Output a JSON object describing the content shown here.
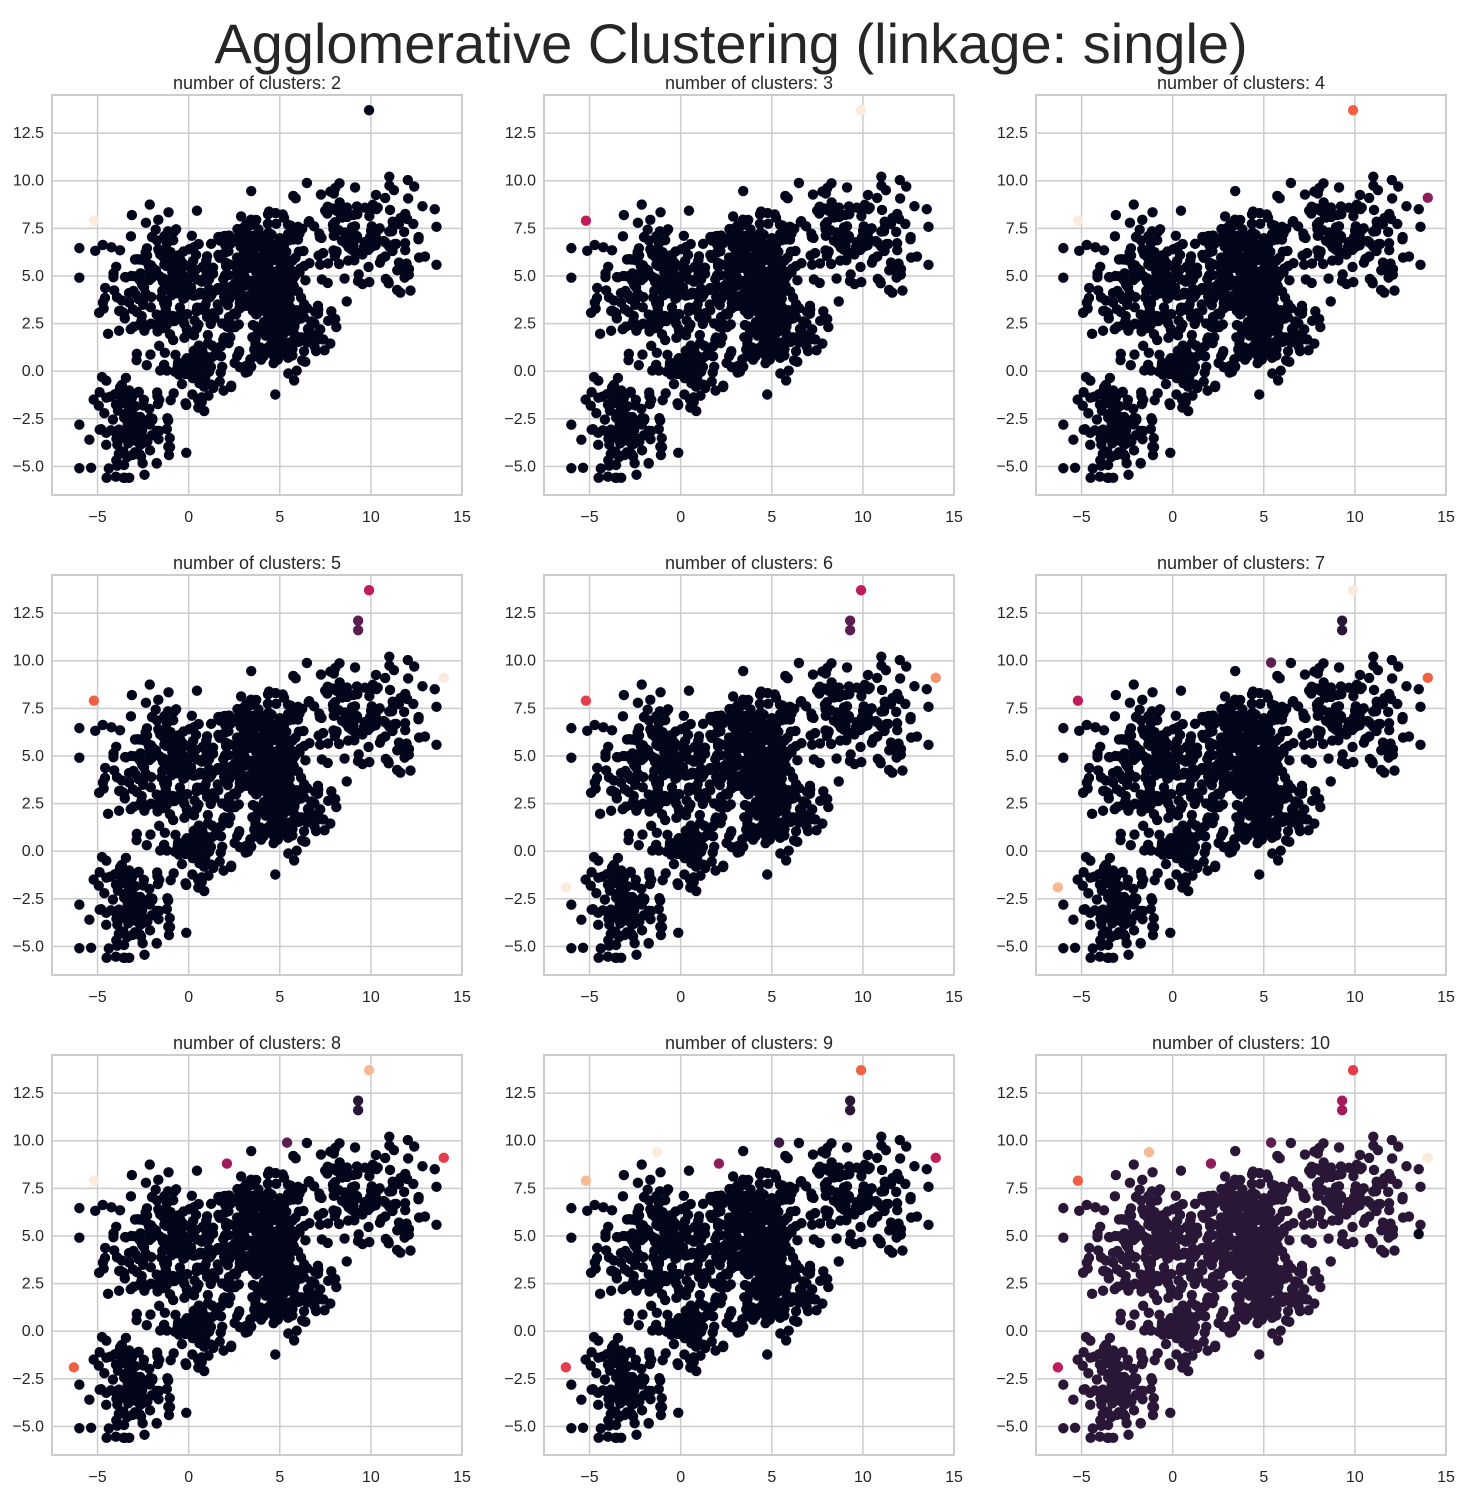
{
  "figure_title": "Agglomerative Clustering (linkage: single)",
  "colors": {
    "grid": "#cccccc",
    "spine": "#cccccc",
    "background": "#ffffff",
    "palette": [
      "#03051a",
      "#2a1636",
      "#5b1e51",
      "#8e1d5b",
      "#c01b5a",
      "#e43d4b",
      "#f06043",
      "#f5936b",
      "#f7b994",
      "#faebdd"
    ]
  },
  "chart_data": [
    {
      "type": "scatter",
      "title": "number of clusters: 2",
      "xlim": [
        -7.5,
        15
      ],
      "ylim": [
        -6.5,
        14.5
      ],
      "xticks": [
        "−5",
        "0",
        "5",
        "10",
        "15"
      ],
      "yticks": [
        "−5.0",
        "−2.5",
        "0.0",
        "2.5",
        "5.0",
        "7.5",
        "10.0",
        "12.5"
      ],
      "main_cluster_color": "#03051a",
      "outliers": [
        {
          "x": -5.2,
          "y": 7.9,
          "color": "#faebdd"
        },
        {
          "x": 9.9,
          "y": 13.7,
          "color": "#03051a"
        }
      ]
    },
    {
      "type": "scatter",
      "title": "number of clusters: 3",
      "xlim": [
        -7.5,
        15
      ],
      "ylim": [
        -6.5,
        14.5
      ],
      "xticks": [
        "−5",
        "0",
        "5",
        "10",
        "15"
      ],
      "yticks": [
        "−5.0",
        "−2.5",
        "0.0",
        "2.5",
        "5.0",
        "7.5",
        "10.0",
        "12.5"
      ],
      "main_cluster_color": "#03051a",
      "outliers": [
        {
          "x": -5.2,
          "y": 7.9,
          "color": "#c01b5a"
        },
        {
          "x": 9.9,
          "y": 13.7,
          "color": "#faebdd"
        }
      ]
    },
    {
      "type": "scatter",
      "title": "number of clusters: 4",
      "xlim": [
        -7.5,
        15
      ],
      "ylim": [
        -6.5,
        14.5
      ],
      "xticks": [
        "−5",
        "0",
        "5",
        "10",
        "15"
      ],
      "yticks": [
        "−5.0",
        "−2.5",
        "0.0",
        "2.5",
        "5.0",
        "7.5",
        "10.0",
        "12.5"
      ],
      "main_cluster_color": "#03051a",
      "outliers": [
        {
          "x": -5.2,
          "y": 7.9,
          "color": "#faebdd"
        },
        {
          "x": 9.9,
          "y": 13.7,
          "color": "#f06043"
        },
        {
          "x": 14.0,
          "y": 9.1,
          "color": "#8e1d5b"
        }
      ]
    },
    {
      "type": "scatter",
      "title": "number of clusters: 5",
      "xlim": [
        -7.5,
        15
      ],
      "ylim": [
        -6.5,
        14.5
      ],
      "xticks": [
        "−5",
        "0",
        "5",
        "10",
        "15"
      ],
      "yticks": [
        "−5.0",
        "−2.5",
        "0.0",
        "2.5",
        "5.0",
        "7.5",
        "10.0",
        "12.5"
      ],
      "main_cluster_color": "#03051a",
      "outliers": [
        {
          "x": -5.2,
          "y": 7.9,
          "color": "#f06043"
        },
        {
          "x": 9.9,
          "y": 13.7,
          "color": "#c01b5a"
        },
        {
          "x": 9.3,
          "y": 12.1,
          "color": "#5b1e51"
        },
        {
          "x": 9.3,
          "y": 11.6,
          "color": "#5b1e51"
        },
        {
          "x": 14.0,
          "y": 9.1,
          "color": "#faebdd"
        }
      ]
    },
    {
      "type": "scatter",
      "title": "number of clusters: 6",
      "xlim": [
        -7.5,
        15
      ],
      "ylim": [
        -6.5,
        14.5
      ],
      "xticks": [
        "−5",
        "0",
        "5",
        "10",
        "15"
      ],
      "yticks": [
        "−5.0",
        "−2.5",
        "0.0",
        "2.5",
        "5.0",
        "7.5",
        "10.0",
        "12.5"
      ],
      "main_cluster_color": "#03051a",
      "outliers": [
        {
          "x": -5.2,
          "y": 7.9,
          "color": "#e43d4b"
        },
        {
          "x": -6.3,
          "y": -1.9,
          "color": "#faebdd"
        },
        {
          "x": 9.9,
          "y": 13.7,
          "color": "#c01b5a"
        },
        {
          "x": 9.3,
          "y": 12.1,
          "color": "#5b1e51"
        },
        {
          "x": 9.3,
          "y": 11.6,
          "color": "#5b1e51"
        },
        {
          "x": 14.0,
          "y": 9.1,
          "color": "#f5936b"
        }
      ]
    },
    {
      "type": "scatter",
      "title": "number of clusters: 7",
      "xlim": [
        -7.5,
        15
      ],
      "ylim": [
        -6.5,
        14.5
      ],
      "xticks": [
        "−5",
        "0",
        "5",
        "10",
        "15"
      ],
      "yticks": [
        "−5.0",
        "−2.5",
        "0.0",
        "2.5",
        "5.0",
        "7.5",
        "10.0",
        "12.5"
      ],
      "main_cluster_color": "#03051a",
      "outliers": [
        {
          "x": -5.2,
          "y": 7.9,
          "color": "#c01b5a"
        },
        {
          "x": -6.3,
          "y": -1.9,
          "color": "#f7b994"
        },
        {
          "x": 9.9,
          "y": 13.7,
          "color": "#faebdd"
        },
        {
          "x": 9.3,
          "y": 12.1,
          "color": "#2a1636"
        },
        {
          "x": 9.3,
          "y": 11.6,
          "color": "#2a1636"
        },
        {
          "x": 5.4,
          "y": 9.9,
          "color": "#5b1e51"
        },
        {
          "x": 14.0,
          "y": 9.1,
          "color": "#f06043"
        }
      ]
    },
    {
      "type": "scatter",
      "title": "number of clusters: 8",
      "xlim": [
        -7.5,
        15
      ],
      "ylim": [
        -6.5,
        14.5
      ],
      "xticks": [
        "−5",
        "0",
        "5",
        "10",
        "15"
      ],
      "yticks": [
        "−5.0",
        "−2.5",
        "0.0",
        "2.5",
        "5.0",
        "7.5",
        "10.0",
        "12.5"
      ],
      "main_cluster_color": "#03051a",
      "outliers": [
        {
          "x": -5.2,
          "y": 7.9,
          "color": "#faebdd"
        },
        {
          "x": -6.3,
          "y": -1.9,
          "color": "#f06043"
        },
        {
          "x": 9.9,
          "y": 13.7,
          "color": "#f7b994"
        },
        {
          "x": 9.3,
          "y": 12.1,
          "color": "#2a1636"
        },
        {
          "x": 9.3,
          "y": 11.6,
          "color": "#2a1636"
        },
        {
          "x": 5.4,
          "y": 9.9,
          "color": "#5b1e51"
        },
        {
          "x": 2.1,
          "y": 8.8,
          "color": "#a41b5b"
        },
        {
          "x": 14.0,
          "y": 9.1,
          "color": "#e43d4b"
        }
      ]
    },
    {
      "type": "scatter",
      "title": "number of clusters: 9",
      "xlim": [
        -7.5,
        15
      ],
      "ylim": [
        -6.5,
        14.5
      ],
      "xticks": [
        "−5",
        "0",
        "5",
        "10",
        "15"
      ],
      "yticks": [
        "−5.0",
        "−2.5",
        "0.0",
        "2.5",
        "5.0",
        "7.5",
        "10.0",
        "12.5"
      ],
      "main_cluster_color": "#03051a",
      "outliers": [
        {
          "x": -5.2,
          "y": 7.9,
          "color": "#f7b994"
        },
        {
          "x": -1.3,
          "y": 9.4,
          "color": "#faebdd"
        },
        {
          "x": -6.3,
          "y": -1.9,
          "color": "#e43d4b"
        },
        {
          "x": 9.9,
          "y": 13.7,
          "color": "#f06043"
        },
        {
          "x": 9.3,
          "y": 12.1,
          "color": "#2a1636"
        },
        {
          "x": 9.3,
          "y": 11.6,
          "color": "#2a1636"
        },
        {
          "x": 5.4,
          "y": 9.9,
          "color": "#3d1a45"
        },
        {
          "x": 2.1,
          "y": 8.8,
          "color": "#8e1d5b"
        },
        {
          "x": 14.0,
          "y": 9.1,
          "color": "#c01b5a"
        }
      ]
    },
    {
      "type": "scatter",
      "title": "number of clusters: 10",
      "xlim": [
        -7.5,
        15
      ],
      "ylim": [
        -6.5,
        14.5
      ],
      "xticks": [
        "−5",
        "0",
        "5",
        "10",
        "15"
      ],
      "yticks": [
        "−5.0",
        "−2.5",
        "0.0",
        "2.5",
        "5.0",
        "7.5",
        "10.0",
        "12.5"
      ],
      "main_cluster_color": "#2a1636",
      "outliers": [
        {
          "x": -5.2,
          "y": 7.9,
          "color": "#f06043"
        },
        {
          "x": -1.3,
          "y": 9.4,
          "color": "#f7b994"
        },
        {
          "x": -6.3,
          "y": -1.9,
          "color": "#c01b5a"
        },
        {
          "x": 9.9,
          "y": 13.7,
          "color": "#e43d4b"
        },
        {
          "x": 9.3,
          "y": 12.1,
          "color": "#a41b5b"
        },
        {
          "x": 9.3,
          "y": 11.6,
          "color": "#a41b5b"
        },
        {
          "x": 5.4,
          "y": 9.9,
          "color": "#5b1e51"
        },
        {
          "x": 2.1,
          "y": 8.8,
          "color": "#8e1d5b"
        },
        {
          "x": 14.0,
          "y": 9.1,
          "color": "#faebdd"
        },
        {
          "x": 13.5,
          "y": 5.1,
          "color": "#03051a"
        }
      ]
    }
  ]
}
